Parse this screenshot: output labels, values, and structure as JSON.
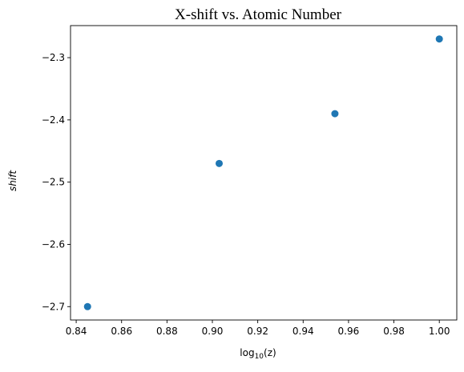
{
  "chart_data": {
    "type": "scatter",
    "title": "X-shift vs. Atomic Number",
    "xlabel_base": "log",
    "xlabel_sub": "10",
    "xlabel_tail": "(z)",
    "ylabel": "shift",
    "xlim": [
      0.8375,
      1.0077
    ],
    "ylim": [
      -2.7215,
      -2.2485
    ],
    "x_ticks": [
      0.84,
      0.86,
      0.88,
      0.9,
      0.92,
      0.94,
      0.96,
      0.98,
      1.0
    ],
    "x_tick_labels": [
      "0.84",
      "0.86",
      "0.88",
      "0.90",
      "0.92",
      "0.94",
      "0.96",
      "0.98",
      "1.00"
    ],
    "y_ticks": [
      -2.7,
      -2.6,
      -2.5,
      -2.4,
      -2.3
    ],
    "y_tick_labels": [
      "−2.7",
      "−2.6",
      "−2.5",
      "−2.4",
      "−2.3"
    ],
    "grid": false,
    "marker_color": "#1f77b4",
    "points": [
      {
        "x": 0.845,
        "y": -2.7
      },
      {
        "x": 0.903,
        "y": -2.47
      },
      {
        "x": 0.954,
        "y": -2.39
      },
      {
        "x": 1.0,
        "y": -2.27
      }
    ]
  }
}
